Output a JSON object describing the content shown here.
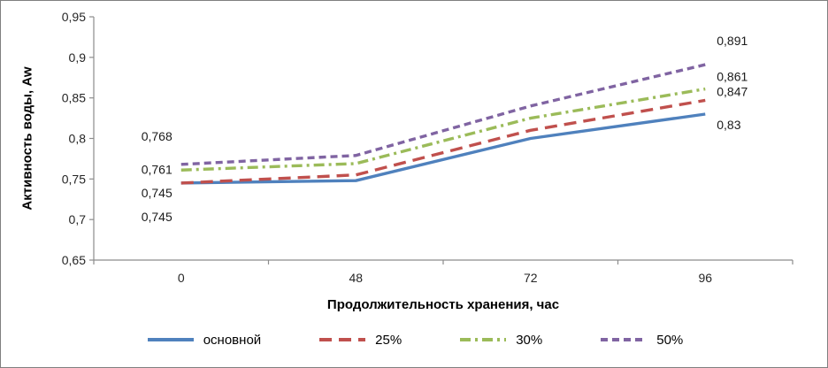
{
  "chart_data": {
    "type": "line",
    "title": "",
    "xlabel": "Продолжительность хранения, час",
    "ylabel": "Активность воды, Aw",
    "x_categories": [
      "0",
      "48",
      "72",
      "96"
    ],
    "x_values": [
      0,
      48,
      72,
      96
    ],
    "ylim": [
      0.65,
      0.95
    ],
    "ytick_step": 0.05,
    "ytick_labels": [
      "0,65",
      "0,7",
      "0,75",
      "0,8",
      "0,85",
      "0,9",
      "0,95"
    ],
    "grid": false,
    "legend_position": "bottom",
    "axis_color": "#8c8c8c",
    "series": [
      {
        "name": "основной",
        "color": "#4F81BD",
        "dash": "solid",
        "values": [
          0.745,
          0.748,
          0.8,
          0.83
        ],
        "labels": {
          "first": "0,745",
          "last": "0,83"
        }
      },
      {
        "name": "25%",
        "color": "#C0504D",
        "dash": "long-dash",
        "values": [
          0.745,
          0.755,
          0.81,
          0.847
        ],
        "labels": {
          "first": "0,745",
          "last": "0,847"
        }
      },
      {
        "name": "30%",
        "color": "#9BBB59",
        "dash": "dash-dot",
        "values": [
          0.761,
          0.769,
          0.825,
          0.861
        ],
        "labels": {
          "first": "0,761",
          "last": "0,861"
        }
      },
      {
        "name": "50%",
        "color": "#8064A2",
        "dash": "dash",
        "values": [
          0.768,
          0.779,
          0.84,
          0.891
        ],
        "labels": {
          "first": "0,768",
          "last": "0,891"
        }
      }
    ]
  }
}
